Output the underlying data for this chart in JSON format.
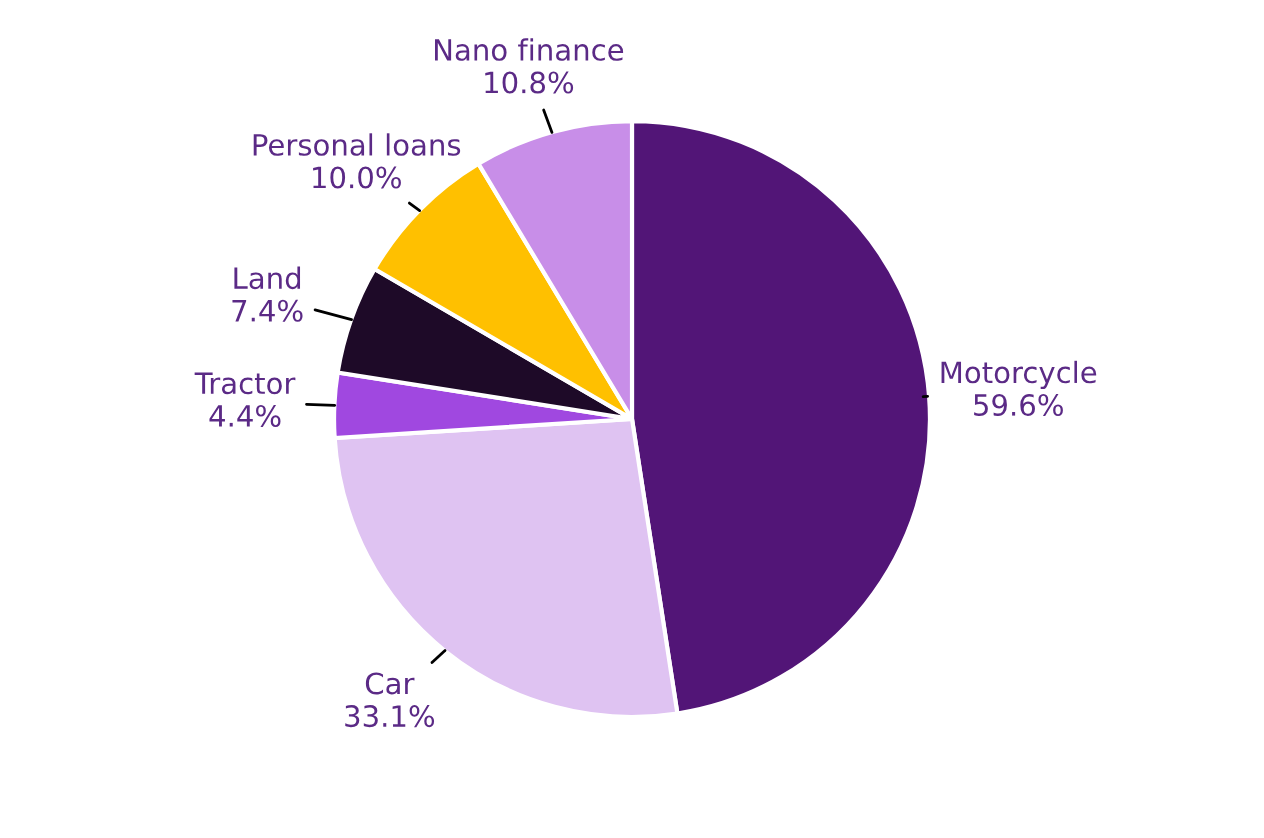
{
  "chart_data": {
    "type": "pie",
    "categories": [
      "Motorcycle",
      "Car",
      "Tractor",
      "Land",
      "Personal loans",
      "Nano finance"
    ],
    "values": [
      59.6,
      33.1,
      4.4,
      7.4,
      10.0,
      10.8
    ],
    "value_labels": [
      "59.6%",
      "33.1%",
      "4.4%",
      "7.4%",
      "10.0%",
      "10.8%"
    ],
    "colors": [
      "#521577",
      "#dfc3f2",
      "#a048e0",
      "#1e0a28",
      "#ffc000",
      "#c88ee8"
    ],
    "legend": false
  }
}
